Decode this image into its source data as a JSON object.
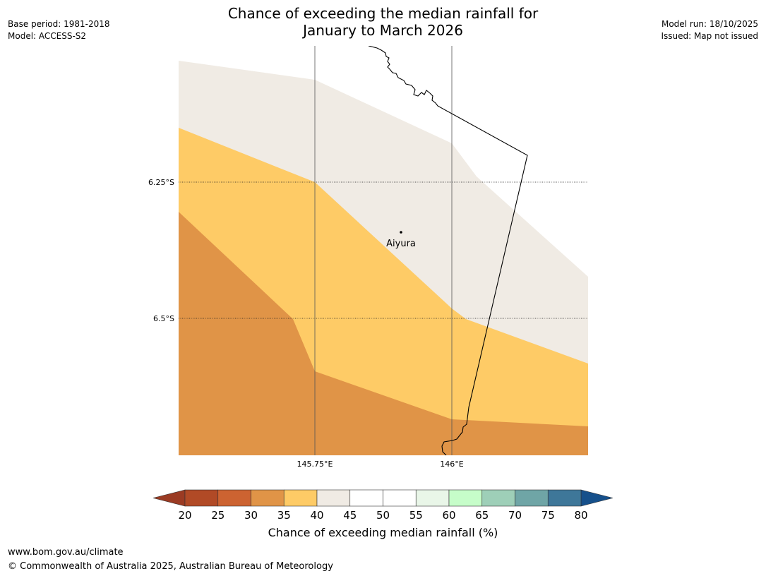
{
  "title": {
    "line1": "Chance of exceeding the median rainfall for",
    "line2": "January to March 2026"
  },
  "meta": {
    "base_period": "Base period: 1981-2018",
    "model": "Model: ACCESS-S2",
    "model_run": "Model run: 18/10/2025",
    "issued": "Issued: Map not issued"
  },
  "map": {
    "lat_labels": [
      "6.25°S",
      "6.5°S"
    ],
    "lon_labels": [
      "145.75°E",
      "146°E"
    ],
    "place": "Aiyura",
    "zones": {
      "band_35_40": "#fecb66",
      "band_40_45": "#f0ebe4",
      "band_30_35": "#e09447",
      "boundary_line": "#000000"
    }
  },
  "colorbar": {
    "title": "Chance of exceeding median rainfall (%)",
    "ticks": [
      "20",
      "25",
      "30",
      "35",
      "40",
      "45",
      "50",
      "55",
      "60",
      "65",
      "70",
      "75",
      "80"
    ],
    "low_extend_color": "#9b3b23",
    "high_extend_color": "#16508b",
    "colors": [
      "#b14a26",
      "#cc6331",
      "#e09447",
      "#fecb66",
      "#f0ebe4",
      "#ffffff",
      "#ffffff",
      "#e9f6e8",
      "#c6fdc9",
      "#9ecfb8",
      "#6fa5a6",
      "#3e7799"
    ]
  },
  "footer": {
    "url": "www.bom.gov.au/climate",
    "copyright": "© Commonwealth of Australia 2025, Australian Bureau of Meteorology"
  }
}
